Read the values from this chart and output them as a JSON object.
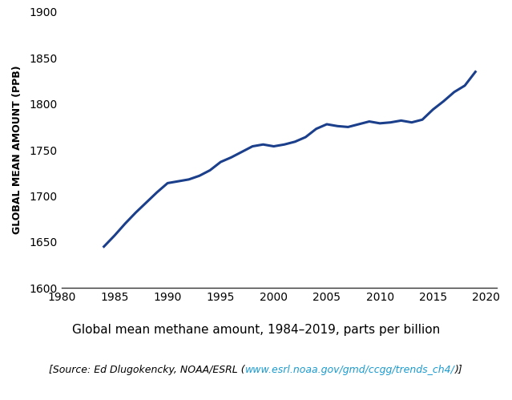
{
  "title": "Global mean methane amount, 1984–2019, parts per billion",
  "t1": "[Source: Ed Dlugokencky, NOAA/ESRL (",
  "t2": "www.esrl.noaa.gov/gmd/ccgg/trends_ch4/",
  "t3": ")]",
  "ylabel": "GLOBAL MEAN AMOUNT (PPB)",
  "xlim": [
    1980,
    2021
  ],
  "ylim": [
    1600,
    1900
  ],
  "xticks": [
    1980,
    1985,
    1990,
    1995,
    2000,
    2005,
    2010,
    2015,
    2020
  ],
  "yticks": [
    1600,
    1650,
    1700,
    1750,
    1800,
    1850,
    1900
  ],
  "line_color": "#1b3f8b",
  "line_width": 2.2,
  "years": [
    1984,
    1985,
    1986,
    1987,
    1988,
    1989,
    1990,
    1991,
    1992,
    1993,
    1994,
    1995,
    1996,
    1997,
    1998,
    1999,
    2000,
    2001,
    2002,
    2003,
    2004,
    2005,
    2006,
    2007,
    2008,
    2009,
    2010,
    2011,
    2012,
    2013,
    2014,
    2015,
    2016,
    2017,
    2018,
    2019
  ],
  "values": [
    1645,
    1657,
    1670,
    1682,
    1693,
    1704,
    1714,
    1716,
    1718,
    1722,
    1728,
    1737,
    1742,
    1748,
    1754,
    1756,
    1754,
    1756,
    1759,
    1764,
    1773,
    1778,
    1776,
    1775,
    1778,
    1781,
    1779,
    1780,
    1782,
    1780,
    1783,
    1794,
    1803,
    1813,
    1820,
    1835
  ],
  "background_color": "#ffffff",
  "url_color": "#1a9bcf",
  "title_fontsize": 11,
  "source_fontsize": 9,
  "ylabel_fontsize": 9,
  "tick_fontsize": 10
}
